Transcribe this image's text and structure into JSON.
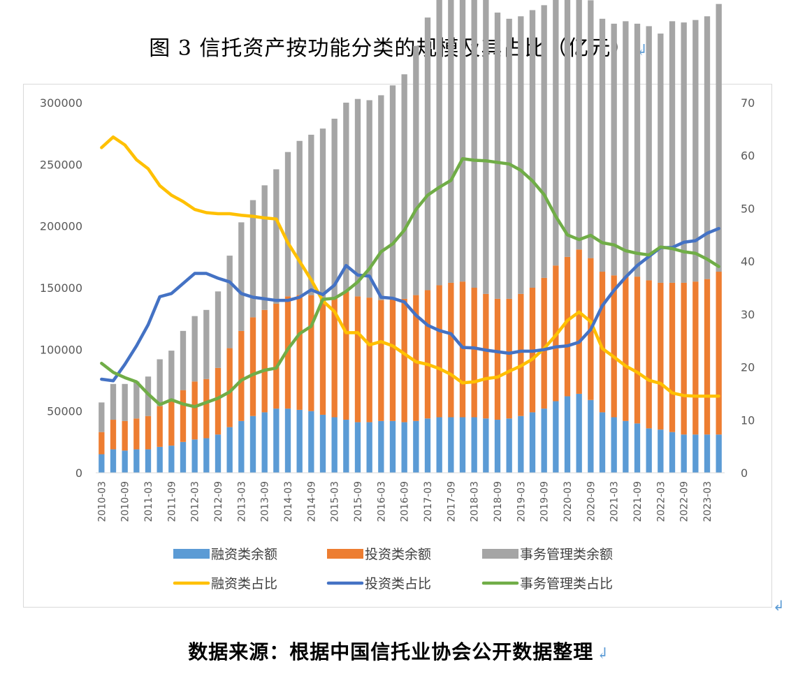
{
  "title": "图 3 信托资产按功能分类的规模及其占比（亿元）",
  "source_note": "数据来源：根据中国信托业协会公开数据整理",
  "return_mark": "↲",
  "colors": {
    "financing": "#5b9bd5",
    "investment": "#ed7d31",
    "management": "#a5a5a5",
    "financing_share": "#ffc000",
    "investment_share": "#4472c4",
    "management_share": "#70ad47"
  },
  "chart_data": {
    "type": "bar",
    "stacked": true,
    "left_axis": {
      "min": 0,
      "max": 300000,
      "ticks": [
        0,
        50000,
        100000,
        150000,
        200000,
        250000,
        300000
      ],
      "tick_labels": [
        "0",
        "50000",
        "100000",
        "150000",
        "200000",
        "250000",
        "300000"
      ]
    },
    "right_axis": {
      "min": 0,
      "max": 70,
      "ticks": [
        0,
        10,
        20,
        30,
        40,
        50,
        60,
        70
      ],
      "tick_labels": [
        "0",
        "10",
        "20",
        "30",
        "40",
        "50",
        "60",
        "70"
      ]
    },
    "grid": false,
    "legend_position": "bottom",
    "categories": [
      "2010-03",
      "2010-06",
      "2010-09",
      "2010-12",
      "2011-03",
      "2011-06",
      "2011-09",
      "2011-12",
      "2012-03",
      "2012-06",
      "2012-09",
      "2012-12",
      "2013-03",
      "2013-06",
      "2013-09",
      "2013-12",
      "2014-03",
      "2014-06",
      "2014-09",
      "2014-12",
      "2015-03",
      "2015-06",
      "2015-09",
      "2015-12",
      "2016-03",
      "2016-06",
      "2016-09",
      "2016-12",
      "2017-03",
      "2017-06",
      "2017-09",
      "2017-12",
      "2018-03",
      "2018-06",
      "2018-09",
      "2018-12",
      "2019-03",
      "2019-06",
      "2019-09",
      "2019-12",
      "2020-03",
      "2020-06",
      "2020-09",
      "2020-12",
      "2021-03",
      "2021-06",
      "2021-09",
      "2021-12",
      "2022-03",
      "2022-06",
      "2022-09",
      "2022-12",
      "2023-03",
      "2023-06"
    ],
    "x_tick_labels": [
      "2010-03",
      "2010-09",
      "2011-03",
      "2011-09",
      "2012-03",
      "2012-09",
      "2013-03",
      "2013-09",
      "2014-03",
      "2014-09",
      "2015-03",
      "2015-09",
      "2016-03",
      "2016-09",
      "2017-03",
      "2017-09",
      "2018-03",
      "2018-09",
      "2019-03",
      "2019-09",
      "2020-03",
      "2020-09",
      "2021-03",
      "2021-09",
      "2022-03",
      "2022-09",
      "2023-03"
    ],
    "bar_series": [
      {
        "name": "融资类余额",
        "values": [
          15000,
          19000,
          18000,
          19000,
          19000,
          21000,
          22000,
          25000,
          27000,
          28000,
          31000,
          37000,
          42000,
          46000,
          49000,
          52000,
          52000,
          51000,
          50000,
          47000,
          45000,
          43000,
          41000,
          41000,
          42000,
          42000,
          41000,
          42000,
          44000,
          45000,
          45000,
          45000,
          45000,
          44000,
          43000,
          44000,
          46000,
          49000,
          52000,
          58000,
          62000,
          64000,
          59000,
          49000,
          45000,
          42000,
          40000,
          36000,
          35000,
          33000,
          31000,
          31000,
          31000,
          31000
        ]
      },
      {
        "name": "投资类余额",
        "values": [
          18000,
          24000,
          24000,
          25000,
          27000,
          33000,
          36000,
          42000,
          47000,
          48000,
          54000,
          64000,
          73000,
          80000,
          83000,
          85000,
          91000,
          93000,
          94000,
          95000,
          97000,
          104000,
          102000,
          101000,
          98000,
          99000,
          100000,
          102000,
          104000,
          107000,
          109000,
          110000,
          105000,
          101000,
          98000,
          97000,
          99000,
          101000,
          106000,
          110000,
          113000,
          117000,
          115000,
          114000,
          115000,
          117000,
          119000,
          120000,
          119000,
          121000,
          123000,
          124000,
          126000,
          132000
        ]
      },
      {
        "name": "事务管理类余额",
        "values": [
          24000,
          29000,
          30000,
          30000,
          32000,
          38000,
          41000,
          48000,
          53000,
          56000,
          62000,
          75000,
          88000,
          95000,
          101000,
          109000,
          117000,
          125000,
          130000,
          137000,
          145000,
          153000,
          160000,
          160000,
          166000,
          173000,
          182000,
          202000,
          221000,
          234000,
          245000,
          262000,
          255000,
          243000,
          232000,
          227000,
          225000,
          225000,
          221000,
          216000,
          214000,
          212000,
          209000,
          205000,
          204000,
          207000,
          205000,
          206000,
          202000,
          212000,
          211000,
          212000,
          213000,
          217000
        ]
      }
    ],
    "line_series": [
      {
        "name": "融资类占比",
        "values": [
          61.5,
          63.5,
          62.0,
          59.2,
          57.5,
          54.3,
          52.5,
          51.3,
          49.8,
          49.2,
          49.0,
          49.0,
          48.7,
          48.5,
          48.2,
          48.0,
          43.5,
          40.0,
          36.5,
          32.5,
          30.5,
          26.5,
          26.5,
          24.2,
          24.8,
          24.0,
          22.5,
          21.0,
          20.5,
          19.7,
          18.6,
          17.0,
          17.2,
          17.8,
          18.1,
          19.2,
          20.2,
          21.5,
          23.5,
          26.0,
          28.8,
          30.4,
          28.6,
          23.5,
          21.9,
          20.2,
          19.0,
          17.5,
          16.9,
          15.1,
          14.6,
          14.5,
          14.5,
          14.5
        ]
      },
      {
        "name": "投资类占比",
        "values": [
          17.7,
          17.4,
          20.5,
          24.0,
          28.0,
          33.3,
          33.9,
          35.8,
          37.7,
          37.7,
          36.8,
          36.1,
          33.9,
          33.2,
          32.9,
          32.6,
          32.6,
          33.2,
          34.6,
          33.7,
          35.5,
          39.2,
          37.4,
          37.2,
          33.2,
          33.0,
          32.3,
          29.8,
          27.9,
          26.9,
          26.3,
          23.7,
          23.6,
          23.2,
          22.9,
          22.6,
          23.0,
          23.0,
          23.3,
          23.8,
          24.0,
          24.7,
          27.1,
          31.6,
          34.5,
          37.0,
          39.2,
          40.9,
          42.6,
          42.6,
          43.6,
          43.9,
          45.3,
          46.2
        ]
      },
      {
        "name": "事务管理类占比",
        "values": [
          20.7,
          19.0,
          18.0,
          17.2,
          14.9,
          12.9,
          13.8,
          13.0,
          12.5,
          13.3,
          14.1,
          15.3,
          17.5,
          18.6,
          19.4,
          19.8,
          23.4,
          26.3,
          27.7,
          32.8,
          33.0,
          34.3,
          36.1,
          38.6,
          41.8,
          43.3,
          45.9,
          49.8,
          52.5,
          54.0,
          55.3,
          59.4,
          59.1,
          59.0,
          58.7,
          58.4,
          57.2,
          55.2,
          52.6,
          48.5,
          45.0,
          44.1,
          44.9,
          43.5,
          43.1,
          42.0,
          41.5,
          41.2,
          42.7,
          42.4,
          41.8,
          41.5,
          40.4,
          39.0
        ]
      }
    ]
  }
}
